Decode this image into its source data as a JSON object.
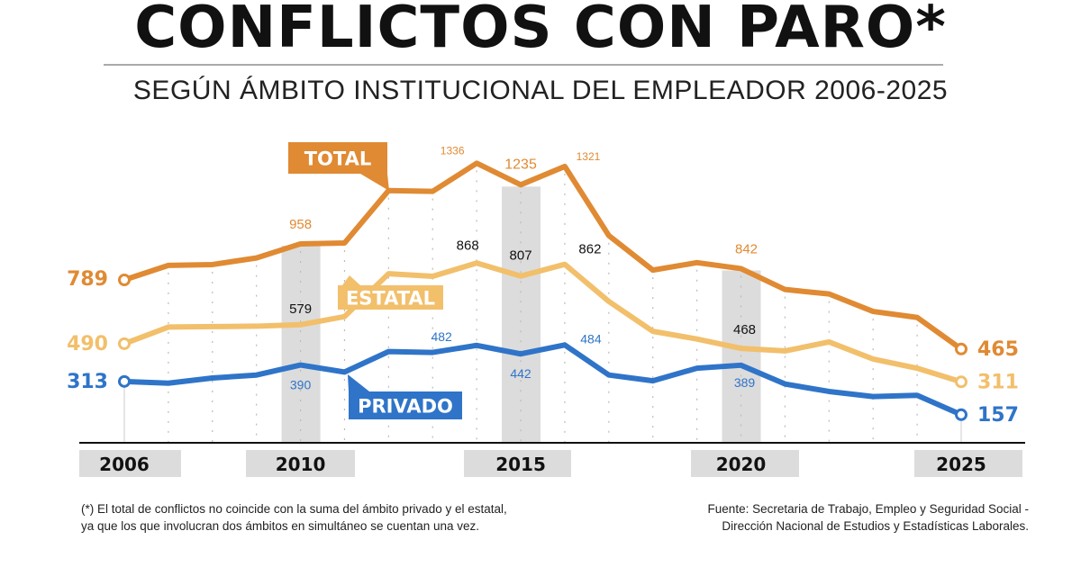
{
  "title": "CONFLICTOS CON PARO*",
  "subtitle": "SEGÚN ÁMBITO INSTITUCIONAL DEL EMPLEADOR 2006-2025",
  "footnote": [
    "(*) El total de conflictos no coincide con la suma del ámbito privado y el estatal,",
    "ya que los que involucran dos ámbitos en simultáneo se cuentan una vez."
  ],
  "source": [
    "Fuente: Secretaria de Trabajo, Empleo y Seguridad Social -",
    "Dirección Nacional de Estudios y Estadísticas Laborales."
  ],
  "chart_data": {
    "type": "line",
    "x": [
      2006,
      2007,
      2008,
      2009,
      2010,
      2011,
      2012,
      2013,
      2014,
      2015,
      2016,
      2017,
      2018,
      2019,
      2020,
      2021,
      2022,
      2023,
      2024,
      2025
    ],
    "x_tick_labels": [
      "2006",
      "2010",
      "2015",
      "2020",
      "2025"
    ],
    "highlighted_years": [
      2010,
      2015,
      2020
    ],
    "ylim": [
      0,
      1400
    ],
    "grid": "vertical dotted",
    "series": [
      {
        "name": "TOTAL",
        "color": "#E08A33",
        "values": [
          789,
          857,
          861,
          892,
          958,
          962,
          1208,
          1204,
          1336,
          1235,
          1321,
          997,
          835,
          870,
          842,
          744,
          723,
          641,
          613,
          465
        ],
        "labeled_years": [
          2006,
          2010,
          2014,
          2015,
          2016,
          2020,
          2025
        ]
      },
      {
        "name": "ESTATAL",
        "color": "#F2BF6B",
        "values": [
          490,
          568,
          570,
          572,
          579,
          617,
          818,
          806,
          868,
          807,
          862,
          688,
          548,
          512,
          468,
          456,
          498,
          418,
          375,
          311
        ],
        "labeled_years": [
          2006,
          2010,
          2014,
          2015,
          2016,
          2020,
          2025
        ]
      },
      {
        "name": "PRIVADO",
        "color": "#2F74C8",
        "values": [
          313,
          305,
          329,
          343,
          390,
          357,
          453,
          449,
          482,
          442,
          484,
          343,
          316,
          375,
          389,
          301,
          266,
          242,
          248,
          157
        ],
        "labeled_years": [
          2006,
          2010,
          2014,
          2015,
          2016,
          2020,
          2025
        ]
      }
    ]
  }
}
